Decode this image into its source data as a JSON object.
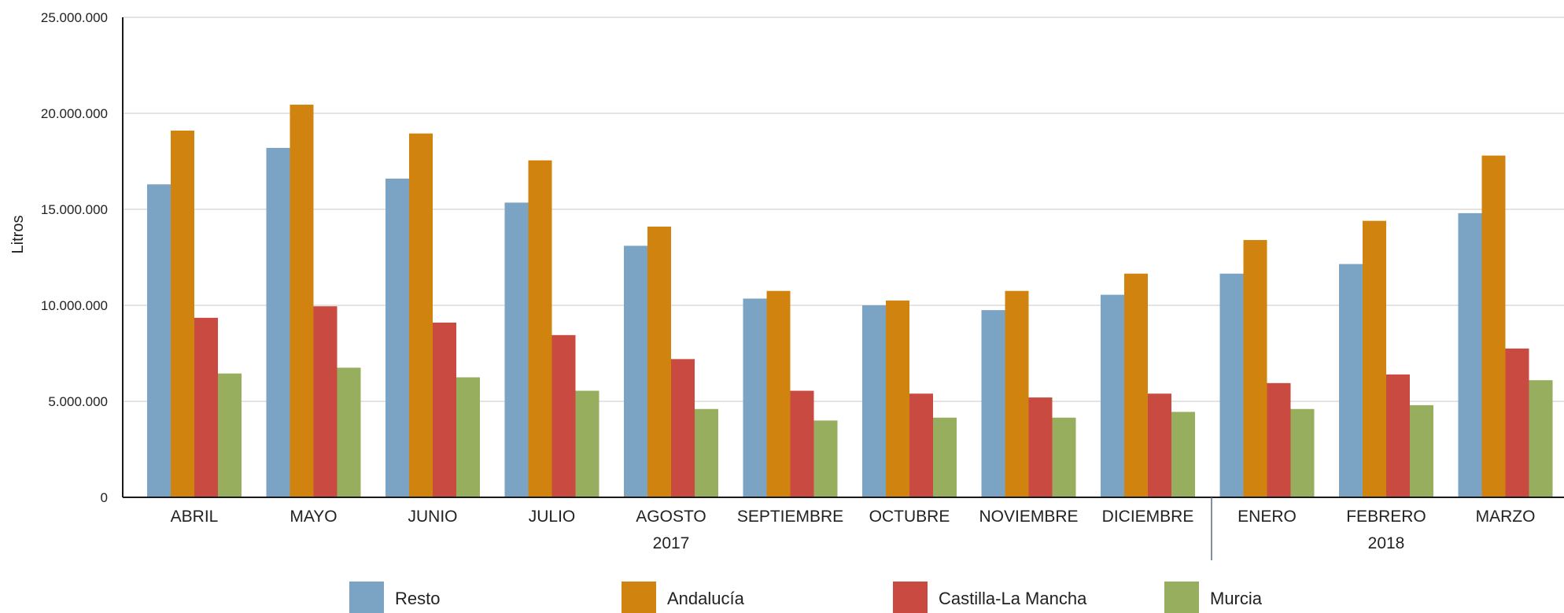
{
  "chart_data": {
    "type": "bar",
    "ylabel": "Litros",
    "xlabel": "",
    "ylim": [
      0,
      25000000
    ],
    "y_ticks": [
      "0",
      "5.000.000",
      "10.000.000",
      "15.000.000",
      "20.000.000",
      "25.000.000"
    ],
    "y_tick_values": [
      0,
      5000000,
      10000000,
      15000000,
      20000000,
      25000000
    ],
    "categories": [
      "ABRIL",
      "MAYO",
      "JUNIO",
      "JULIO",
      "AGOSTO",
      "SEPTIEMBRE",
      "OCTUBRE",
      "NOVIEMBRE",
      "DICIEMBRE",
      "ENERO",
      "FEBRERO",
      "MARZO"
    ],
    "groups": [
      {
        "label": "2017",
        "categories": [
          "ABRIL",
          "MAYO",
          "JUNIO",
          "JULIO",
          "AGOSTO",
          "SEPTIEMBRE",
          "OCTUBRE",
          "NOVIEMBRE",
          "DICIEMBRE"
        ]
      },
      {
        "label": "2018",
        "categories": [
          "ENERO",
          "FEBRERO",
          "MARZO"
        ]
      }
    ],
    "grid": true,
    "legend_position": "bottom",
    "series": [
      {
        "name": "Resto",
        "color": "#7BA3C4",
        "values": [
          16300000,
          18200000,
          16600000,
          15350000,
          13100000,
          10350000,
          10000000,
          9750000,
          10550000,
          11650000,
          12150000,
          14800000
        ]
      },
      {
        "name": "Andalucía",
        "color": "#D0840F",
        "values": [
          19100000,
          20450000,
          18950000,
          17550000,
          14100000,
          10750000,
          10250000,
          10750000,
          11650000,
          13400000,
          14400000,
          17800000
        ]
      },
      {
        "name": "Castilla-La Mancha",
        "color": "#C84A41",
        "values": [
          9350000,
          9950000,
          9100000,
          8450000,
          7200000,
          5550000,
          5400000,
          5200000,
          5400000,
          5950000,
          6400000,
          7750000
        ]
      },
      {
        "name": "Murcia",
        "color": "#97AE5E",
        "values": [
          6450000,
          6750000,
          6250000,
          5550000,
          4600000,
          4000000,
          4150000,
          4150000,
          4450000,
          4600000,
          4800000,
          6100000
        ]
      }
    ]
  }
}
